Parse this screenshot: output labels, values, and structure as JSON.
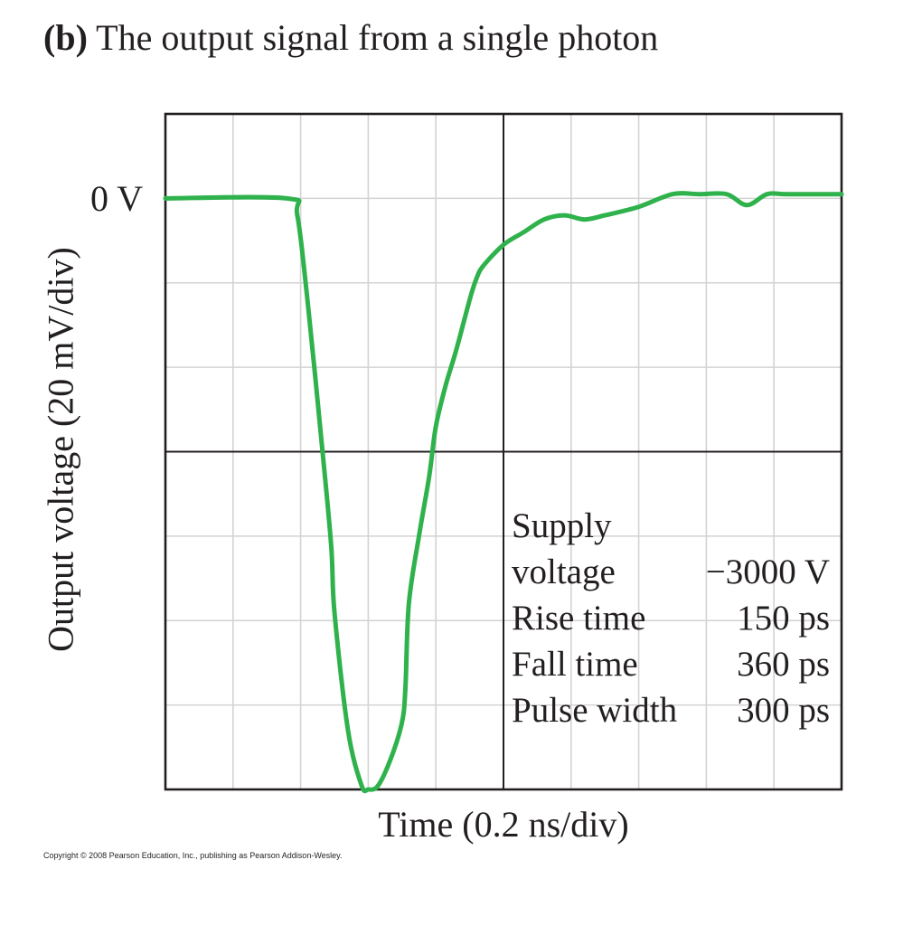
{
  "figure": {
    "label": "(b)",
    "title": "The output signal from a single photon",
    "copyright": "Copyright © 2008 Pearson Education, Inc., publishing as Pearson Addison-Wesley."
  },
  "chart_data": {
    "type": "line",
    "xlabel": "Time (0.2 ns/div)",
    "ylabel": "Output voltage (20 mV/div)",
    "zero_label": "0 V",
    "x_unit": "div",
    "y_unit": "div",
    "xlim": [
      0,
      10
    ],
    "ylim": [
      -7,
      1
    ],
    "x_divisions": 10,
    "y_divisions": 8,
    "grid": true,
    "colors": {
      "trace": "#2fb24c",
      "grid": "#d3d3d3",
      "axes": "#231f20"
    },
    "series": [
      {
        "x": [
          0,
          1.8,
          1.95,
          2.1,
          2.3,
          2.45,
          2.5,
          2.7,
          2.9,
          3.0,
          3.15,
          3.35,
          3.5,
          3.55,
          3.6,
          3.75,
          3.9,
          4.0,
          4.15,
          4.3,
          4.5,
          4.6,
          4.7,
          5.0,
          5.3,
          5.6,
          5.9,
          6.2,
          6.5,
          7.0,
          7.5,
          7.9,
          8.3,
          8.6,
          8.9,
          9.2,
          10
        ],
        "y": [
          0,
          0,
          -0.2,
          -1.2,
          -2.8,
          -4.1,
          -4.9,
          -6.3,
          -6.95,
          -7.0,
          -6.95,
          -6.6,
          -6.2,
          -5.8,
          -4.8,
          -4.0,
          -3.3,
          -2.7,
          -2.2,
          -1.8,
          -1.2,
          -0.95,
          -0.8,
          -0.55,
          -0.4,
          -0.25,
          -0.2,
          -0.25,
          -0.2,
          -0.1,
          0.05,
          0.05,
          0.05,
          -0.08,
          0.05,
          0.05,
          0.05
        ]
      }
    ]
  },
  "specs": {
    "heading": "Supply",
    "rows": [
      {
        "name": "voltage",
        "value": "−3000 V"
      },
      {
        "name": "Rise time",
        "value": "150 ps"
      },
      {
        "name": "Fall time",
        "value": "360 ps"
      },
      {
        "name": "Pulse width",
        "value": "300 ps"
      }
    ]
  }
}
